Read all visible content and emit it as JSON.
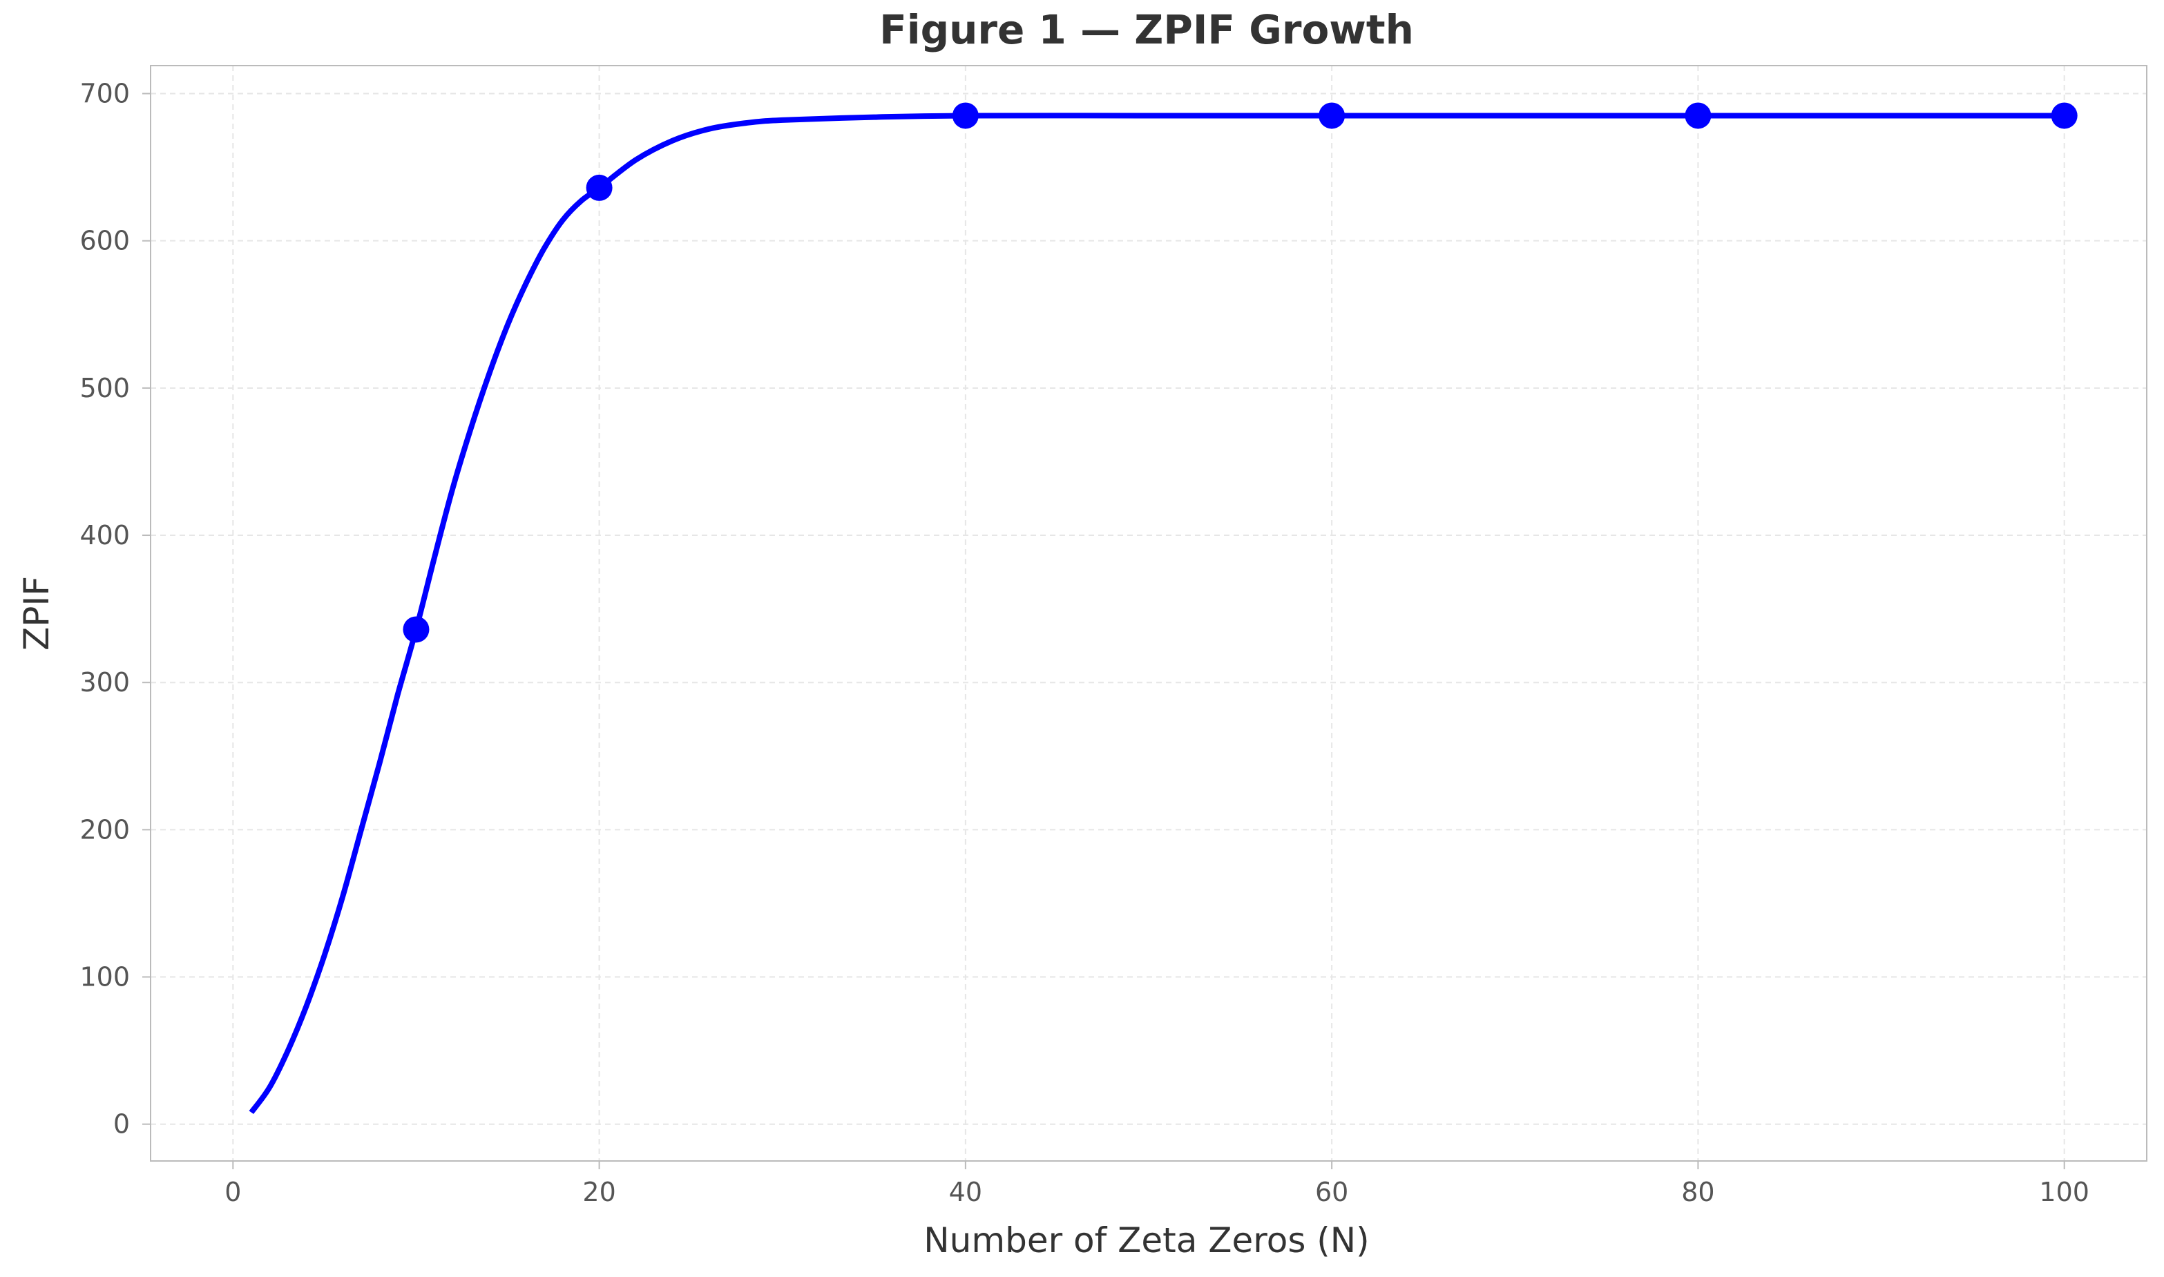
{
  "chart_data": {
    "type": "line",
    "title": "Figure 1 — ZPIF Growth",
    "xlabel": "Number of Zeta Zeros (N)",
    "ylabel": "ZPIF",
    "xlim": [
      -4.5,
      104.5
    ],
    "ylim": [
      -25,
      719
    ],
    "x_ticks": [
      0,
      20,
      40,
      60,
      80,
      100
    ],
    "y_ticks": [
      0,
      100,
      200,
      300,
      400,
      500,
      600,
      700
    ],
    "grid": true,
    "legend": "none",
    "colors": {
      "line": "#0000ff",
      "markers": "#0000ff",
      "axes_border": "#bbbbbb",
      "grid": "#e6e6e6",
      "title": "#333333",
      "tick_label": "#555555"
    },
    "series": [
      {
        "style": "curve",
        "x": [
          1,
          2,
          3,
          4,
          5,
          6,
          7,
          8,
          9,
          10,
          11,
          12,
          13,
          14,
          15,
          16,
          17,
          18,
          19,
          20,
          22,
          24,
          26,
          28,
          30,
          35,
          40,
          50,
          60,
          70,
          80,
          90,
          100
        ],
        "y": [
          8,
          25,
          50,
          80,
          115,
          155,
          200,
          245,
          292,
          336,
          385,
          432,
          473,
          510,
          543,
          571,
          595,
          614,
          627,
          636,
          655,
          668,
          676,
          680,
          682,
          684,
          685,
          685,
          685,
          685,
          685,
          685,
          685
        ]
      },
      {
        "style": "markers",
        "x": [
          10,
          20,
          40,
          60,
          80,
          100
        ],
        "y": [
          336,
          636,
          685,
          685,
          685,
          685
        ]
      }
    ]
  }
}
